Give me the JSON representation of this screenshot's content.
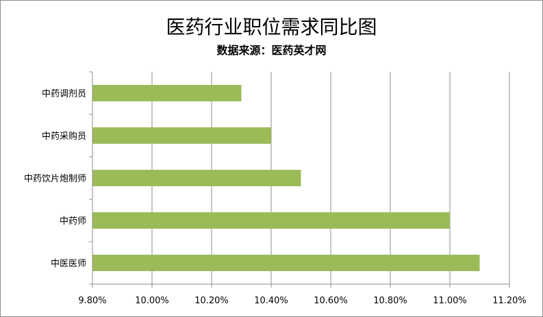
{
  "chart_data": {
    "type": "bar",
    "orientation": "horizontal",
    "title": "医药行业职位需求同比图",
    "subtitle": "数据来源：医药英才网",
    "categories": [
      "中药调剂员",
      "中药采购员",
      "中药饮片炮制师",
      "中药师",
      "中医医师"
    ],
    "values": [
      10.3,
      10.4,
      10.5,
      11.0,
      11.1
    ],
    "value_unit": "%",
    "xlim": [
      9.8,
      11.2
    ],
    "x_ticks": [
      "9.80%",
      "10.00%",
      "10.20%",
      "10.40%",
      "10.60%",
      "10.80%",
      "11.00%",
      "11.20%"
    ],
    "grid": "vertical",
    "legend": "none",
    "colors": {
      "bar": "#9bbb59",
      "grid": "#8c8c8c",
      "axis": "#8c8c8c"
    }
  }
}
